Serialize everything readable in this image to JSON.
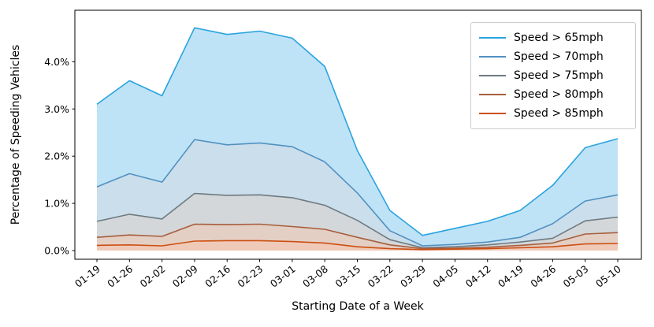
{
  "chart_data": {
    "type": "area",
    "title": "",
    "xlabel": "Starting Date of a Week",
    "ylabel": "Percentage of Speeding Vehicles",
    "categories": [
      "01-19",
      "01-26",
      "02-02",
      "02-09",
      "02-16",
      "02-23",
      "03-01",
      "03-08",
      "03-15",
      "03-22",
      "03-29",
      "04-05",
      "04-12",
      "04-19",
      "04-26",
      "05-03",
      "05-10"
    ],
    "series": [
      {
        "name": "Speed > 65mph",
        "color": "#29a3e0",
        "values": [
          3.1,
          3.6,
          3.28,
          4.72,
          4.58,
          4.65,
          4.5,
          3.9,
          2.12,
          0.85,
          0.32,
          0.47,
          0.62,
          0.85,
          1.38,
          2.18,
          2.37
        ]
      },
      {
        "name": "Speed > 70mph",
        "color": "#5191c1",
        "values": [
          1.35,
          1.63,
          1.45,
          2.35,
          2.24,
          2.28,
          2.2,
          1.88,
          1.22,
          0.42,
          0.1,
          0.13,
          0.18,
          0.28,
          0.57,
          1.05,
          1.18
        ]
      },
      {
        "name": "Speed > 75mph",
        "color": "#6e7b81",
        "values": [
          0.62,
          0.77,
          0.67,
          1.21,
          1.17,
          1.18,
          1.12,
          0.96,
          0.64,
          0.23,
          0.06,
          0.08,
          0.12,
          0.18,
          0.26,
          0.63,
          0.71
        ]
      },
      {
        "name": "Speed > 80mph",
        "color": "#a65e3d",
        "values": [
          0.28,
          0.33,
          0.3,
          0.56,
          0.55,
          0.56,
          0.51,
          0.45,
          0.28,
          0.12,
          0.04,
          0.05,
          0.07,
          0.11,
          0.16,
          0.35,
          0.38
        ]
      },
      {
        "name": "Speed > 85mph",
        "color": "#cc4f12",
        "values": [
          0.11,
          0.12,
          0.1,
          0.2,
          0.21,
          0.21,
          0.19,
          0.16,
          0.08,
          0.04,
          0.02,
          0.03,
          0.04,
          0.06,
          0.08,
          0.14,
          0.15
        ]
      }
    ],
    "y_ticks": [
      0,
      1,
      2,
      3,
      4
    ],
    "y_tick_labels": [
      "0.0%",
      "1.0%",
      "2.0%",
      "3.0%",
      "4.0%"
    ],
    "ylim": [
      0,
      5.1
    ],
    "grid": false,
    "legend_position": "upper right",
    "fill_alpha": 0.3,
    "x_tick_rotation_deg": 38
  }
}
